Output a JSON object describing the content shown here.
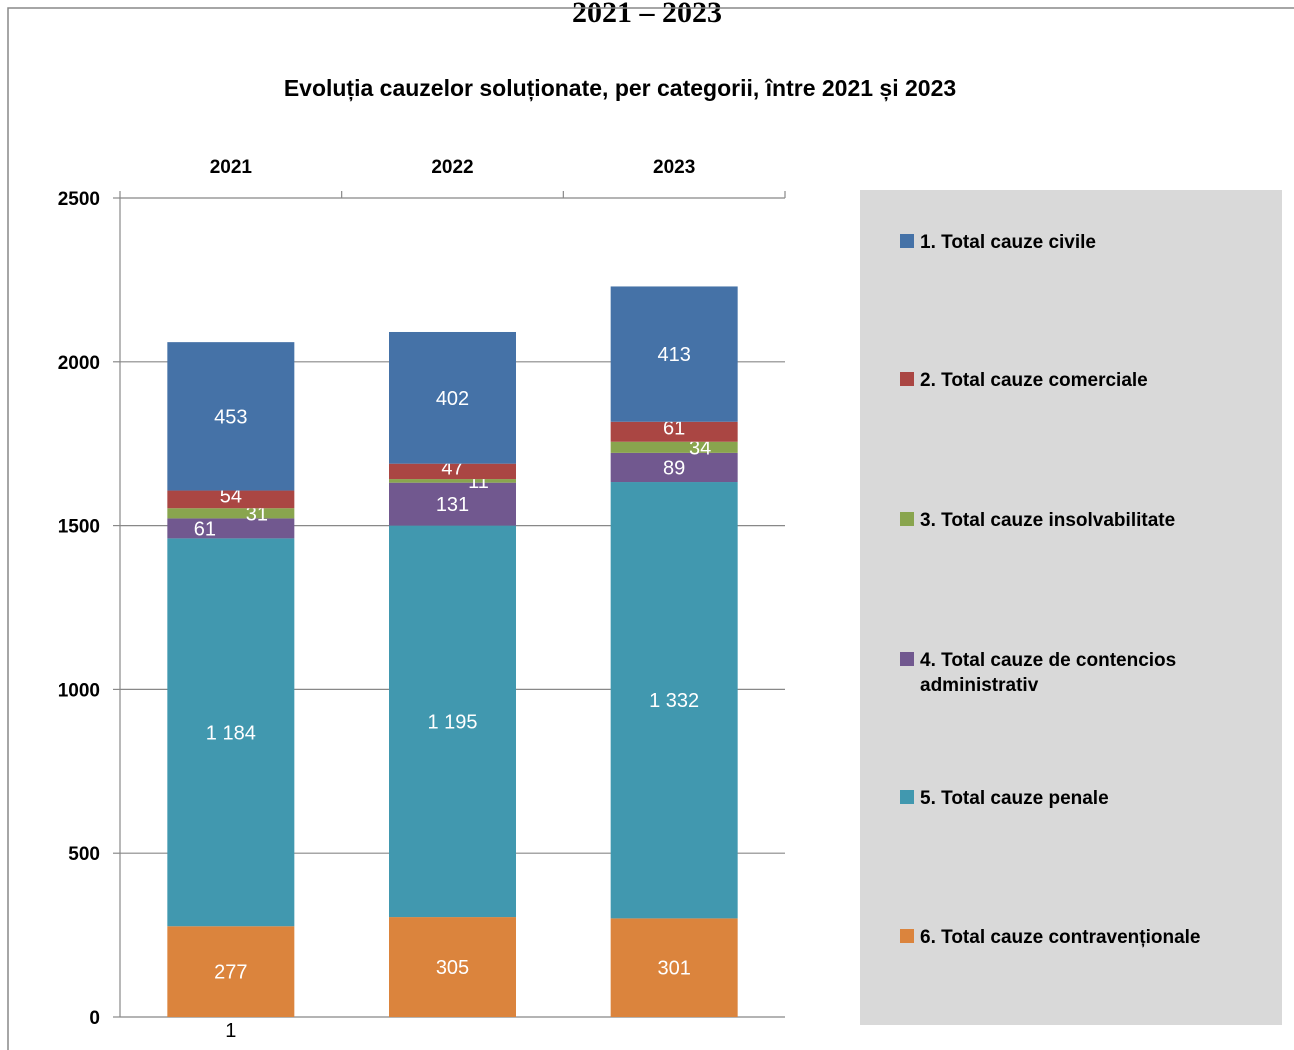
{
  "header": "2021 – 2023",
  "chart_data": {
    "type": "stacked-bar",
    "title": "Evoluția cauzelor soluționate, per categorii, între 2021 și 2023",
    "categories": [
      "2021",
      "2022",
      "2023"
    ],
    "series": [
      {
        "name": "1. Total cauze civile",
        "color": "#4572a7",
        "values": [
          453,
          402,
          413
        ]
      },
      {
        "name": "2. Total cauze comerciale",
        "color": "#aa4643",
        "values": [
          54,
          47,
          61
        ]
      },
      {
        "name": "3. Total cauze insolvabilitate",
        "color": "#89a54e",
        "values": [
          31,
          11,
          34
        ]
      },
      {
        "name": "4. Total cauze de contencios administrativ",
        "color": "#71588f",
        "values": [
          61,
          131,
          89
        ]
      },
      {
        "name": "5. Total cauze penale",
        "color": "#4198af",
        "values": [
          1184,
          1195,
          1332
        ],
        "value_labels": [
          "1 184",
          "1 195",
          "1 332"
        ]
      },
      {
        "name": "6. Total cauze contravenționale",
        "color": "#db843d",
        "values": [
          277,
          305,
          301
        ]
      }
    ],
    "annotation": "1",
    "ylim": [
      0,
      2500
    ],
    "yticks": [
      0,
      500,
      1000,
      1500,
      2000,
      2500
    ],
    "grid": true,
    "stack_order": "bottom-up-last-series-first",
    "legend": "right"
  }
}
